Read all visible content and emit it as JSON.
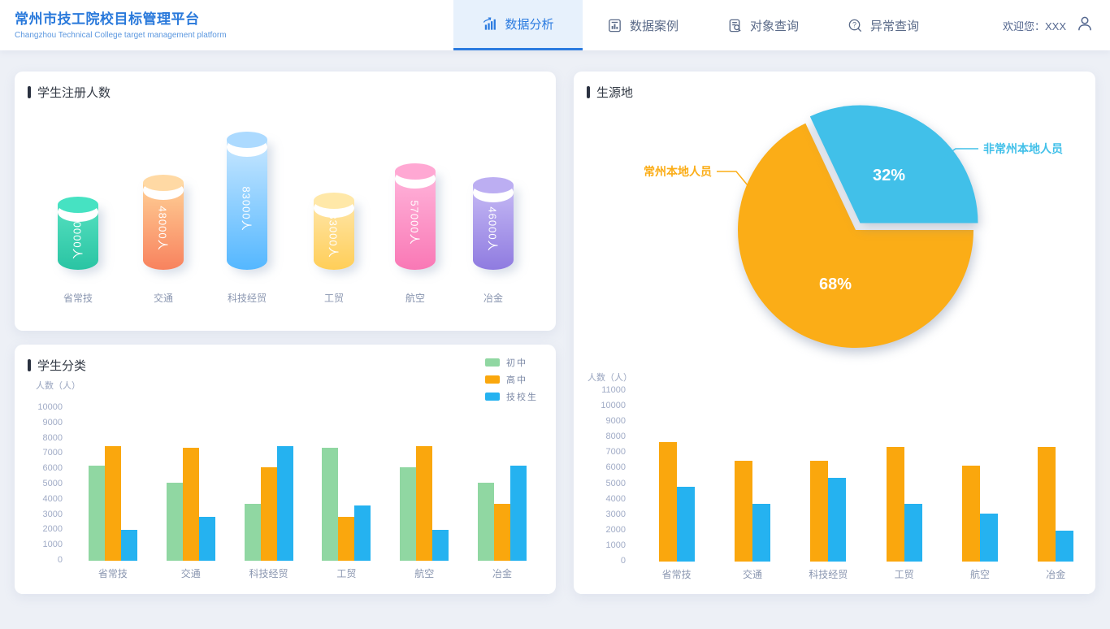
{
  "header": {
    "title": "常州市技工院校目标管理平台",
    "subtitle": "Changzhou Technical College target management platform",
    "nav": [
      {
        "label": "数据分析",
        "icon": "bar-chart-arrow-icon",
        "active": true
      },
      {
        "label": "数据案例",
        "icon": "document-chart-icon",
        "active": false
      },
      {
        "label": "对象查询",
        "icon": "document-search-icon",
        "active": false
      },
      {
        "label": "异常查询",
        "icon": "search-question-icon",
        "active": false
      }
    ],
    "welcome": "欢迎您：XXX",
    "user_icon": "user-icon"
  },
  "colors": {
    "accent_blue": "#2B7BE0",
    "active_tab_bg": "#E7F1FC",
    "page_bg": "#EDF0F6",
    "pie_orange": "#FBAD17",
    "pie_blue": "#41C0E9",
    "bar_green": "#90D7A2",
    "bar_orange": "#FAA70D",
    "bar_blue": "#25B2F0"
  },
  "cards": {
    "registration": {
      "title": "学生注册人数"
    },
    "classification": {
      "title": "学生分类"
    },
    "origin": {
      "title": "生源地"
    }
  },
  "chart_data": [
    {
      "id": "registration",
      "type": "bar",
      "variant": "cylinder",
      "title": "学生注册人数",
      "categories": [
        "省常技",
        "交通",
        "科技经贸",
        "工贸",
        "航空",
        "冶金"
      ],
      "values": [
        30000,
        48000,
        83000,
        33000,
        57000,
        46000
      ],
      "value_labels": [
        "30000人",
        "48000人",
        "83000人",
        "33000人",
        "57000人",
        "46000人"
      ],
      "colors": [
        {
          "top": "#46E2C2",
          "body_from": "#55E0C0",
          "body_to": "#2AC4A3"
        },
        {
          "top": "#FFD9A4",
          "body_from": "#FFD096",
          "body_to": "#F8825E"
        },
        {
          "top": "#ACDAFF",
          "body_from": "#C8E7FF",
          "body_to": "#54B7FF"
        },
        {
          "top": "#FFE8A8",
          "body_from": "#FFE6A9",
          "body_to": "#FFCE58"
        },
        {
          "top": "#FFA8D3",
          "body_from": "#FFB5DB",
          "body_to": "#F978B5"
        },
        {
          "top": "#BCAEF2",
          "body_from": "#C6BAF5",
          "body_to": "#8F7BE0"
        }
      ]
    },
    {
      "id": "origin-pie",
      "type": "pie",
      "title": "生源地",
      "slices": [
        {
          "label": "常州本地人员",
          "value_pct": 68,
          "display": "68%",
          "color": "#FBAD17"
        },
        {
          "label": "非常州本地人员",
          "value_pct": 32,
          "display": "32%",
          "color": "#41C0E9"
        }
      ]
    },
    {
      "id": "classification",
      "type": "bar",
      "title": "学生分类",
      "ylabel": "人数（人）",
      "ylim": [
        0,
        10000
      ],
      "ytick_step": 1000,
      "grid": false,
      "legend_position": "top-right",
      "categories": [
        "省常技",
        "交通",
        "科技经贸",
        "工贸",
        "航空",
        "冶金"
      ],
      "series": [
        {
          "name": "初中",
          "color": "#90D7A2",
          "values": [
            6200,
            5100,
            3700,
            7400,
            6100,
            5100
          ]
        },
        {
          "name": "高中",
          "color": "#FAA70D",
          "values": [
            7500,
            7400,
            6100,
            2900,
            7500,
            3700
          ]
        },
        {
          "name": "技校生",
          "color": "#25B2F0",
          "values": [
            2000,
            2900,
            7500,
            3600,
            2000,
            6200
          ]
        }
      ]
    },
    {
      "id": "origin-bars",
      "type": "bar",
      "ylabel": "人数（人）",
      "ylim": [
        0,
        11000
      ],
      "ytick_step": 1000,
      "grid": false,
      "categories": [
        "省常技",
        "交通",
        "科技经贸",
        "工贸",
        "航空",
        "冶金"
      ],
      "series": [
        {
          "color": "#FAA70D",
          "values": [
            7700,
            6500,
            6500,
            7400,
            6200,
            7400
          ]
        },
        {
          "color": "#25B2F0",
          "values": [
            4800,
            3700,
            5400,
            3700,
            3100,
            2000
          ]
        }
      ]
    }
  ]
}
